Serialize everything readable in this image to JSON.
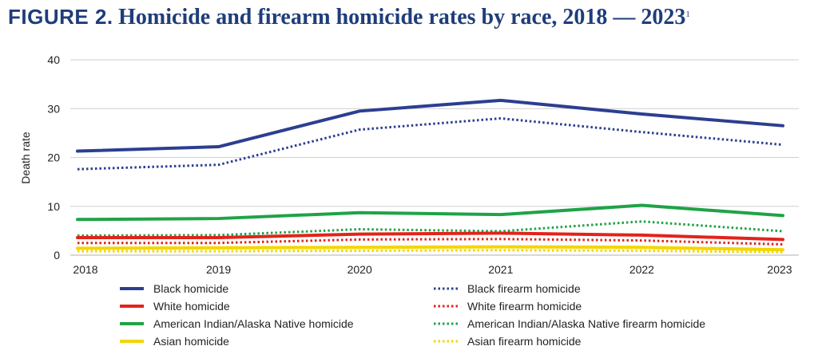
{
  "figure": {
    "label": "FIGURE 2.",
    "title": "Homicide and firearm homicide rates by race, 2018 — 2023",
    "footnote": "1"
  },
  "chart_data": {
    "type": "line",
    "title": "Homicide and firearm homicide rates by race, 2018 — 2023",
    "xlabel": "",
    "ylabel": "Death rate",
    "x": [
      "2018",
      "2019",
      "2020",
      "2021",
      "2022",
      "2023"
    ],
    "ylim": [
      0,
      40
    ],
    "yticks": [
      0,
      10,
      20,
      30,
      40
    ],
    "grid": true,
    "legend_position": "bottom",
    "series": [
      {
        "name": "Black homicide",
        "color": "#2b3f91",
        "style": "solid",
        "values": [
          21.3,
          22.2,
          29.5,
          31.7,
          28.9,
          26.5
        ]
      },
      {
        "name": "Black firearm homicide",
        "color": "#2b3f91",
        "style": "dotted",
        "values": [
          17.6,
          18.5,
          25.7,
          28.0,
          25.2,
          22.6
        ]
      },
      {
        "name": "White homicide",
        "color": "#e2231a",
        "style": "solid",
        "values": [
          3.6,
          3.6,
          4.3,
          4.5,
          4.1,
          3.2
        ]
      },
      {
        "name": "White firearm homicide",
        "color": "#e2231a",
        "style": "dotted",
        "values": [
          2.5,
          2.5,
          3.2,
          3.3,
          3.0,
          2.2
        ]
      },
      {
        "name": "American Indian/Alaska Native homicide",
        "color": "#1fa347",
        "style": "solid",
        "values": [
          7.3,
          7.5,
          8.7,
          8.3,
          10.2,
          8.1
        ]
      },
      {
        "name": "American Indian/Alaska Native firearm homicide",
        "color": "#1fa347",
        "style": "dotted",
        "values": [
          4.0,
          4.1,
          5.3,
          4.9,
          6.9,
          4.9
        ]
      },
      {
        "name": "Asian homicide",
        "color": "#f2d600",
        "style": "solid",
        "values": [
          1.4,
          1.5,
          1.6,
          1.7,
          1.6,
          1.1
        ]
      },
      {
        "name": "Asian firearm homicide",
        "color": "#f2d600",
        "style": "dotted",
        "values": [
          0.8,
          0.8,
          0.9,
          1.0,
          0.9,
          0.6
        ]
      }
    ]
  }
}
